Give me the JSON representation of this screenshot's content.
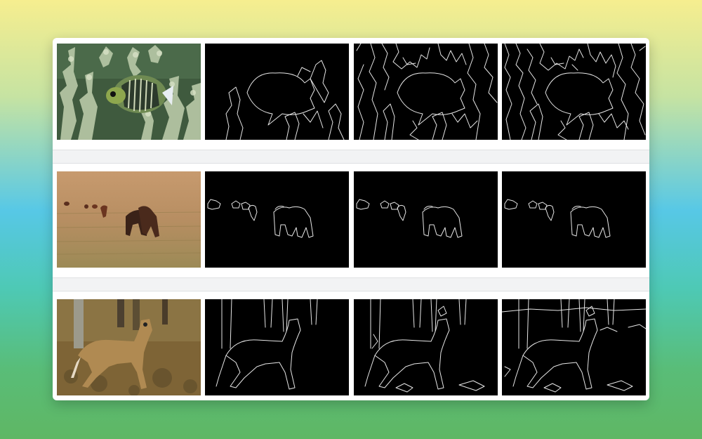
{
  "figure": {
    "rows": [
      {
        "name": "fish",
        "panels": [
          "photo",
          "edges-coarse",
          "edges-medium",
          "edges-fine"
        ]
      },
      {
        "name": "animals-in-field",
        "panels": [
          "photo",
          "edges-coarse",
          "edges-medium",
          "edges-fine"
        ]
      },
      {
        "name": "deer",
        "panels": [
          "photo",
          "edges-coarse",
          "edges-medium",
          "edges-fine"
        ]
      }
    ]
  },
  "colors": {
    "edge_background": "#000000",
    "edge_stroke": "#e6e6e6",
    "card_background": "#ffffff",
    "separator": "#f2f3f4"
  }
}
